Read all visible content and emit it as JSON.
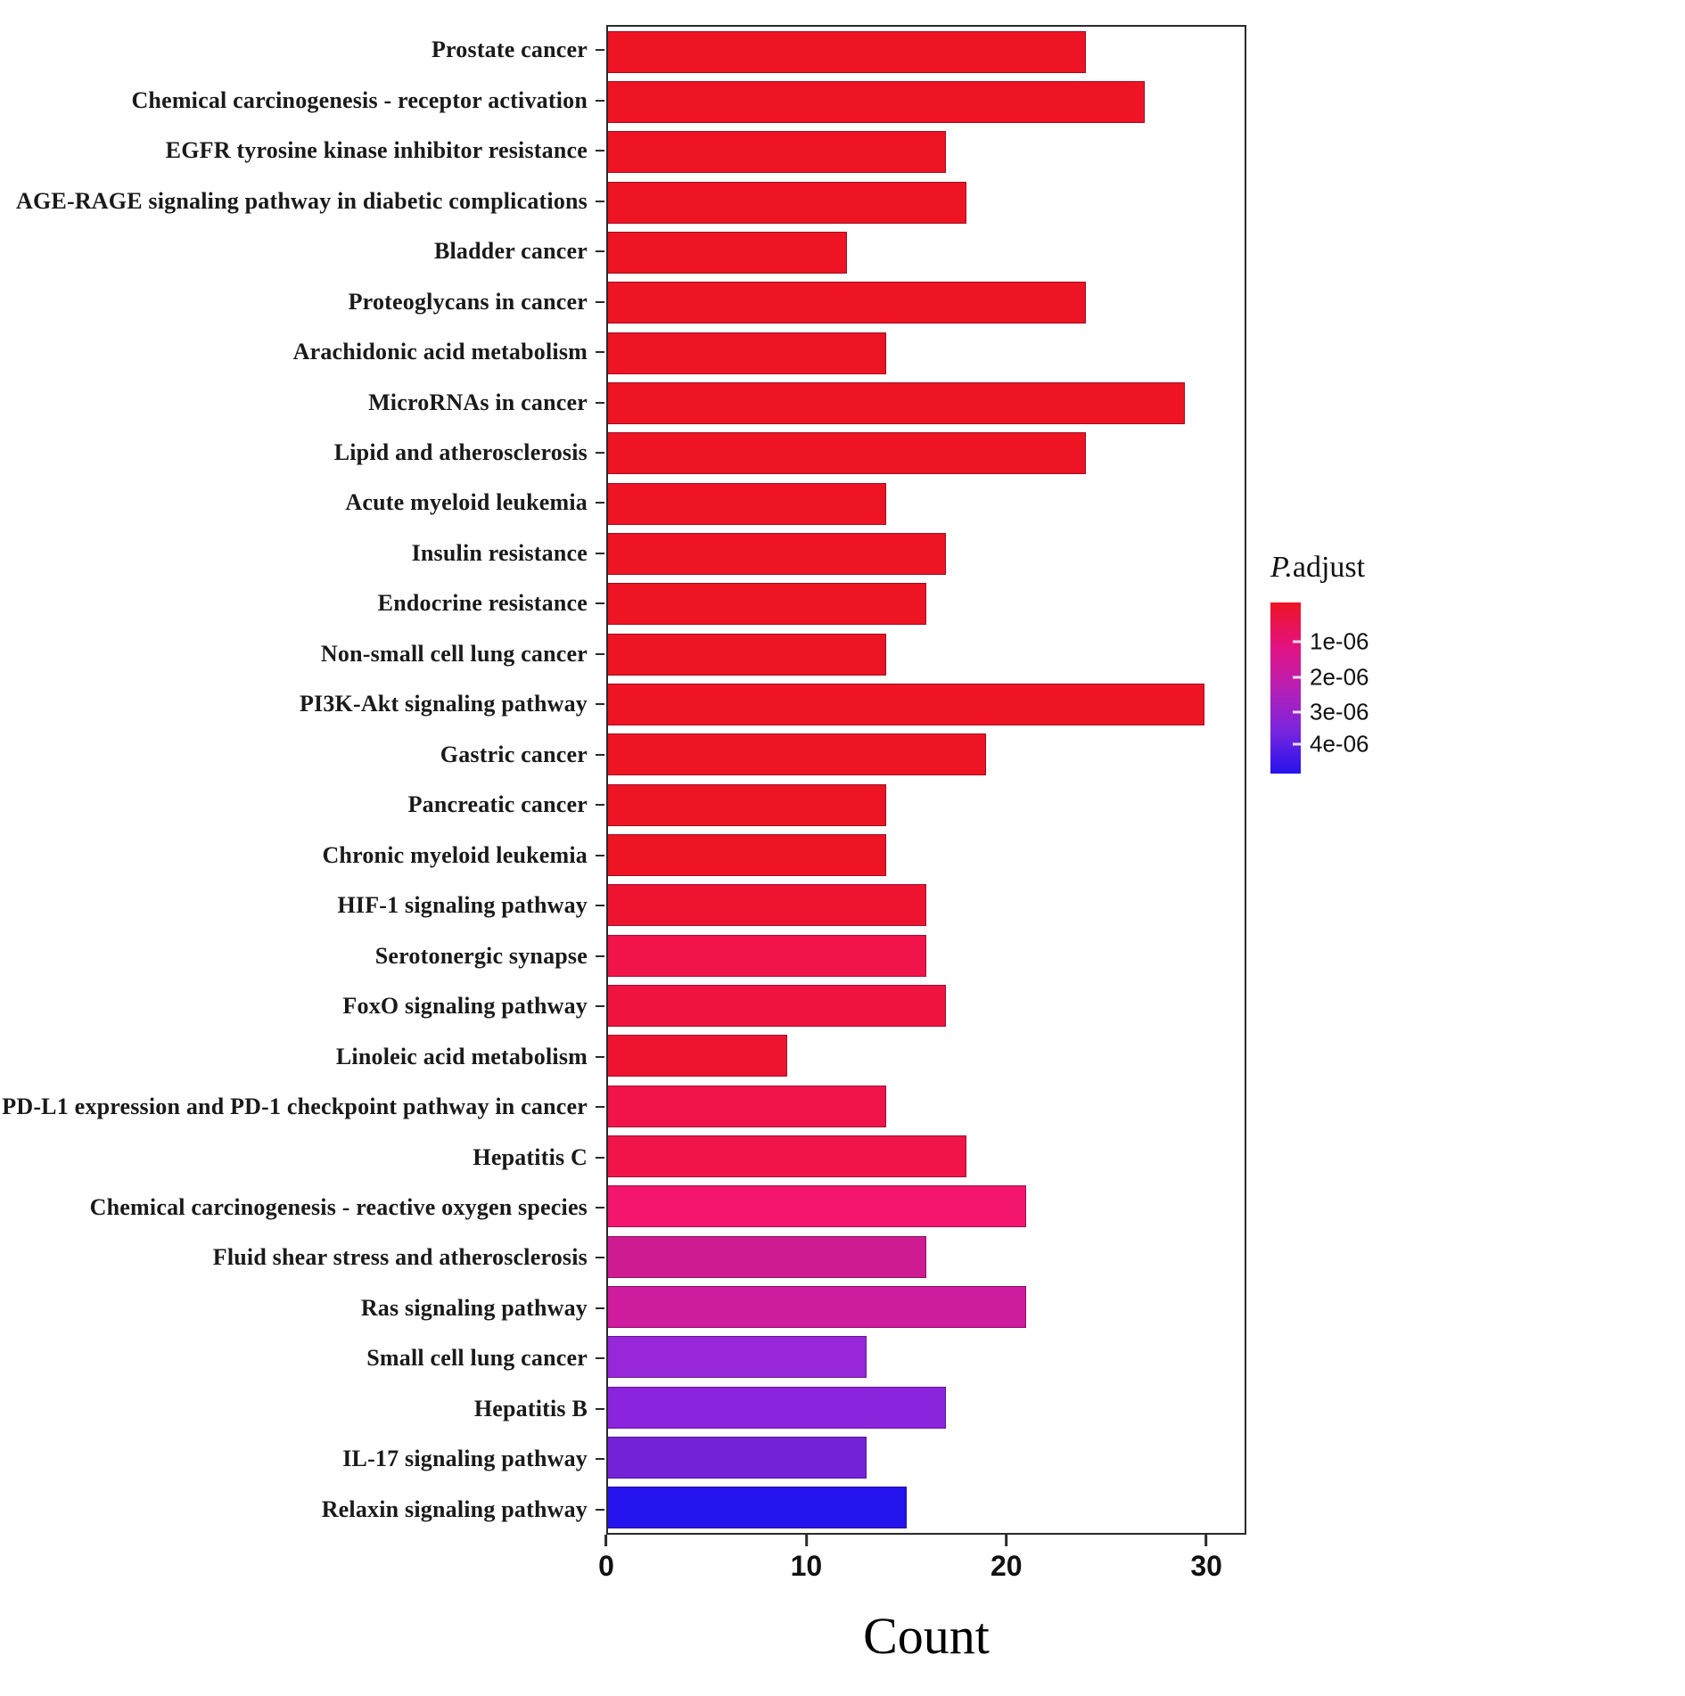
{
  "chart_data": {
    "type": "bar",
    "orientation": "horizontal",
    "title": "",
    "xlabel": "Count",
    "ylabel": "",
    "xlim": [
      0,
      32
    ],
    "xticks": [
      0,
      10,
      20,
      30
    ],
    "grid": false,
    "legend_position": "right",
    "categories": [
      "Prostate cancer",
      "Chemical carcinogenesis - receptor activation",
      "EGFR tyrosine kinase inhibitor resistance",
      "AGE-RAGE signaling pathway in diabetic complications",
      "Bladder cancer",
      "Proteoglycans in cancer",
      "Arachidonic acid metabolism",
      "MicroRNAs in cancer",
      "Lipid and atherosclerosis",
      "Acute myeloid leukemia",
      "Insulin resistance",
      "Endocrine resistance",
      "Non-small cell lung cancer",
      "PI3K-Akt signaling pathway",
      "Gastric cancer",
      "Pancreatic cancer",
      "Chronic myeloid leukemia",
      "HIF-1 signaling pathway",
      "Serotonergic synapse",
      "FoxO signaling pathway",
      "Linoleic acid metabolism",
      "PD-L1 expression and PD-1 checkpoint pathway in cancer",
      "Hepatitis C",
      "Chemical carcinogenesis - reactive oxygen species",
      "Fluid shear stress and atherosclerosis",
      "Ras signaling pathway",
      "Small cell lung cancer",
      "Hepatitis B",
      "IL-17 signaling pathway",
      "Relaxin signaling pathway"
    ],
    "values": [
      24,
      27,
      17,
      18,
      12,
      24,
      14,
      29,
      24,
      14,
      17,
      16,
      14,
      30,
      19,
      14,
      14,
      16,
      16,
      17,
      9,
      14,
      18,
      21,
      16,
      21,
      13,
      17,
      13,
      15
    ],
    "colors": [
      "#ee1424",
      "#ee1424",
      "#ee1424",
      "#ee1424",
      "#ee1424",
      "#ee1424",
      "#ee1424",
      "#ee1424",
      "#ee1424",
      "#ee1424",
      "#ee1424",
      "#ee1424",
      "#ee1424",
      "#ee1424",
      "#ee1424",
      "#ee1424",
      "#ee1424",
      "#ee1430",
      "#f0144a",
      "#ef1440",
      "#ee1430",
      "#f0144a",
      "#f01448",
      "#f3156e",
      "#cf1b92",
      "#cf1b9e",
      "#9727d8",
      "#8b24dd",
      "#7322d8",
      "#2413ec"
    ],
    "legend": {
      "title": "P.adjust",
      "gradient": [
        "#ee1424",
        "#e4127f",
        "#b81fb4",
        "#7a25de",
        "#2413ec"
      ],
      "ticks": [
        {
          "label": "1e-06",
          "pos": 0.23
        },
        {
          "label": "2e-06",
          "pos": 0.44
        },
        {
          "label": "3e-06",
          "pos": 0.64
        },
        {
          "label": "4e-06",
          "pos": 0.83
        }
      ]
    }
  }
}
